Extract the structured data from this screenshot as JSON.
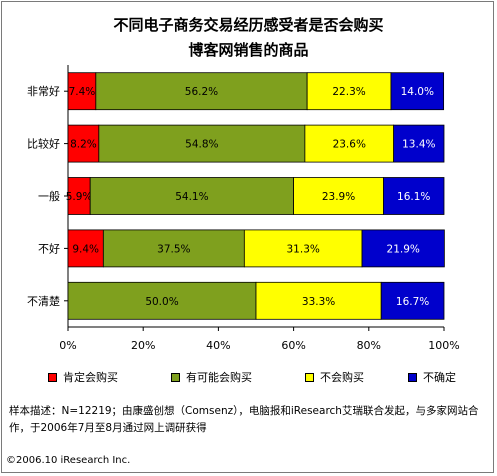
{
  "chart_data": {
    "type": "bar",
    "stacked": true,
    "orientation": "horizontal",
    "title": [
      "不同电子商务交易经历感受者是否会购买",
      "博客网销售的商品"
    ],
    "categories": [
      "非常好",
      "比较好",
      "一般",
      "不好",
      "不清楚"
    ],
    "series": [
      {
        "name": "肯定会购买",
        "color": "#ff0000",
        "values": [
          7.4,
          8.2,
          5.9,
          9.4,
          0
        ],
        "labels": [
          "7.4%",
          "8.2%",
          "5.9%",
          "9.4%",
          ""
        ]
      },
      {
        "name": "有可能会购买",
        "color": "#7fa01e",
        "values": [
          56.2,
          54.8,
          54.1,
          37.5,
          50.0
        ],
        "labels": [
          "56.2%",
          "54.8%",
          "54.1%",
          "37.5%",
          "50.0%"
        ]
      },
      {
        "name": "不会购买",
        "color": "#ffff00",
        "values": [
          22.3,
          23.6,
          23.9,
          31.3,
          33.3
        ],
        "labels": [
          "22.3%",
          "23.6%",
          "23.9%",
          "31.3%",
          "33.3%"
        ]
      },
      {
        "name": "不确定",
        "color": "#0000cc",
        "values": [
          14.0,
          13.4,
          16.1,
          21.9,
          16.7
        ],
        "labels": [
          "14.0%",
          "13.4%",
          "16.1%",
          "21.9%",
          "16.7%"
        ]
      }
    ],
    "xlim": [
      0,
      100
    ],
    "xticks": [
      "0%",
      "20%",
      "40%",
      "60%",
      "80%",
      "100%"
    ],
    "grid": false,
    "legend": "bottom"
  },
  "note_line1": "样本描述：N=12219；由康盛创想（Comsenz），电脑报和iResearch艾瑞联合发起，与多家网站合",
  "note_line2": "作，于2006年7月至8月通过网上调研获得",
  "copyright": "©2006.10 iResearch Inc."
}
